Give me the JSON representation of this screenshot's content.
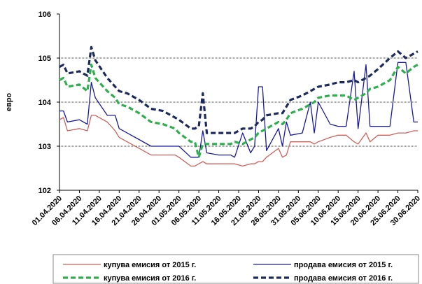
{
  "chart_data": {
    "type": "line",
    "y_label": "евро",
    "x": [
      "01.04.2020",
      "02.04.2020",
      "03.04.2020",
      "06.04.2020",
      "08.04.2020",
      "09.04.2020",
      "10.04.2020",
      "13.04.2020",
      "15.04.2020",
      "16.04.2020",
      "18.04.2020",
      "21.04.2020",
      "24.04.2020",
      "27.04.2020",
      "30.04.2020",
      "01.05.2020",
      "04.05.2020",
      "05.05.2020",
      "06.05.2020",
      "07.05.2020",
      "08.05.2020",
      "11.05.2020",
      "14.05.2020",
      "15.05.2020",
      "17.05.2020",
      "19.05.2020",
      "20.05.2020",
      "21.05.2020",
      "22.05.2020",
      "23.05.2020",
      "26.05.2020",
      "27.05.2020",
      "28.05.2020",
      "29.05.2020",
      "01.06.2020",
      "03.06.2020",
      "04.06.2020",
      "05.06.2020",
      "08.06.2020",
      "10.06.2020",
      "12.06.2020",
      "14.06.2020",
      "15.06.2020",
      "17.06.2020",
      "18.06.2020",
      "20.06.2020",
      "23.06.2020",
      "25.06.2020",
      "27.06.2020",
      "29.06.2020",
      "30.06.2020"
    ],
    "xlim": [
      "01.04.2020",
      "30.06.2020"
    ],
    "xticks": [
      "01.04.2020",
      "06.04.2020",
      "11.04.2020",
      "16.04.2020",
      "21.04.2020",
      "26.04.2020",
      "01.05.2020",
      "06.05.2020",
      "11.05.2020",
      "16.05.2020",
      "21.05.2020",
      "26.05.2020",
      "31.05.2020",
      "05.06.2020",
      "10.06.2020",
      "15.06.2020",
      "20.06.2020",
      "25.06.2020",
      "30.06.2020"
    ],
    "ylim": [
      102,
      106
    ],
    "yticks": [
      102,
      103,
      104,
      105,
      106
    ],
    "grid": true,
    "series": [
      {
        "name": "купува емисия от 2015 г.",
        "color": "#d0605a",
        "line_style": "solid",
        "values": [
          103.6,
          103.65,
          103.35,
          103.4,
          103.35,
          103.7,
          103.7,
          103.55,
          103.35,
          103.2,
          103.1,
          102.95,
          102.8,
          102.8,
          102.8,
          102.75,
          102.55,
          102.55,
          102.6,
          102.65,
          102.6,
          102.6,
          102.6,
          102.6,
          102.55,
          102.6,
          102.6,
          102.65,
          102.65,
          102.75,
          102.95,
          102.75,
          102.8,
          103.1,
          103.1,
          103.1,
          103.05,
          103.1,
          103.2,
          103.25,
          103.25,
          103.1,
          103.05,
          103.3,
          103.1,
          103.25,
          103.25,
          103.3,
          103.3,
          103.35,
          103.35
        ]
      },
      {
        "name": "продава емисия от 2015 г.",
        "color": "#1a1aa0",
        "line_style": "solid",
        "values": [
          103.8,
          103.8,
          103.55,
          103.6,
          103.5,
          104.45,
          104.1,
          103.7,
          103.7,
          103.4,
          103.3,
          103.15,
          103.0,
          103.0,
          103.0,
          103.0,
          102.75,
          102.75,
          102.75,
          103.35,
          102.85,
          102.8,
          102.8,
          102.75,
          103.3,
          102.85,
          103.0,
          104.35,
          104.35,
          102.9,
          103.4,
          103.0,
          103.55,
          103.25,
          103.3,
          104.0,
          103.3,
          104.0,
          103.5,
          103.45,
          103.45,
          104.7,
          103.4,
          104.85,
          103.45,
          103.45,
          103.45,
          104.9,
          104.9,
          103.55,
          103.55
        ]
      },
      {
        "name": "купува емисия от 2016 г.",
        "color": "#2db04b",
        "line_style": "dashed",
        "values": [
          104.5,
          104.55,
          104.35,
          104.4,
          104.25,
          104.85,
          104.55,
          104.25,
          104.1,
          103.95,
          103.9,
          103.75,
          103.55,
          103.5,
          103.4,
          103.3,
          103.1,
          103.1,
          102.75,
          103.05,
          103.05,
          103.05,
          103.05,
          103.1,
          103.05,
          103.15,
          103.2,
          103.3,
          103.35,
          103.4,
          103.55,
          103.5,
          103.6,
          103.75,
          103.85,
          103.95,
          104.0,
          104.1,
          104.15,
          104.15,
          104.15,
          104.05,
          104.1,
          104.2,
          104.3,
          104.35,
          104.5,
          104.8,
          104.65,
          104.8,
          104.85
        ]
      },
      {
        "name": "продава емисия от 2016 г.",
        "color": "#1c2a5e",
        "line_style": "dashed",
        "values": [
          104.8,
          104.85,
          104.65,
          104.7,
          104.6,
          105.25,
          104.95,
          104.55,
          104.35,
          104.25,
          104.2,
          104.05,
          103.85,
          103.8,
          103.65,
          103.6,
          103.4,
          103.4,
          103.45,
          104.2,
          103.3,
          103.3,
          103.3,
          103.3,
          103.4,
          103.4,
          103.45,
          103.55,
          103.6,
          103.7,
          103.75,
          103.75,
          103.9,
          104.05,
          104.15,
          104.25,
          104.3,
          104.35,
          104.4,
          104.45,
          104.45,
          104.5,
          104.45,
          104.55,
          104.6,
          104.75,
          105.0,
          105.15,
          105.0,
          105.1,
          105.15
        ]
      }
    ]
  }
}
